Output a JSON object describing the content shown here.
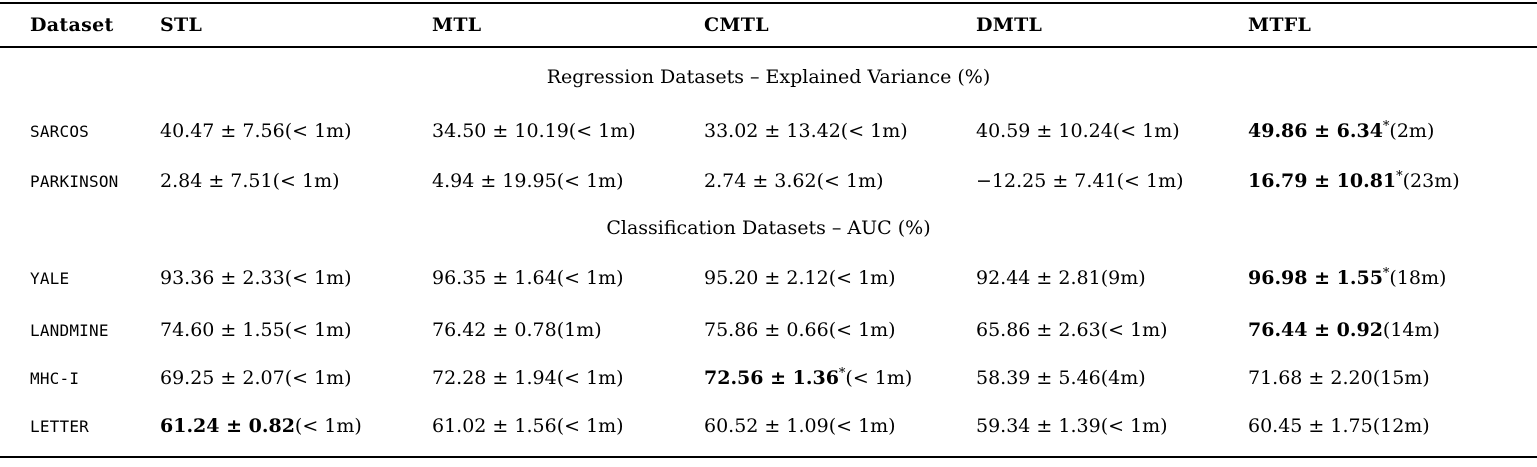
{
  "header": {
    "columns": [
      "Dataset",
      "STL",
      "MTL",
      "CMTL",
      "DMTL",
      "MTFL"
    ]
  },
  "sections": [
    {
      "title": "Regression Datasets – Explained Variance (%)",
      "rows": [
        {
          "dataset": "SARCOS",
          "cells": [
            {
              "value": "40.47 ± 7.56",
              "star": "",
              "time": "(< 1m)",
              "bold": false
            },
            {
              "value": "34.50 ± 10.19",
              "star": "",
              "time": "(< 1m)",
              "bold": false
            },
            {
              "value": "33.02 ± 13.42",
              "star": "",
              "time": "(< 1m)",
              "bold": false
            },
            {
              "value": "40.59 ± 10.24",
              "star": "",
              "time": "(< 1m)",
              "bold": false
            },
            {
              "value": "49.86 ± 6.34",
              "star": "*",
              "time": "(2m)",
              "bold": true
            }
          ]
        },
        {
          "dataset": "PARKINSON",
          "cells": [
            {
              "value": "2.84 ± 7.51",
              "star": "",
              "time": "(< 1m)",
              "bold": false
            },
            {
              "value": "4.94 ± 19.95",
              "star": "",
              "time": "(< 1m)",
              "bold": false
            },
            {
              "value": "2.74 ± 3.62",
              "star": "",
              "time": "(< 1m)",
              "bold": false
            },
            {
              "value": "−12.25 ± 7.41",
              "star": "",
              "time": "(< 1m)",
              "bold": false
            },
            {
              "value": "16.79 ± 10.81",
              "star": "*",
              "time": "(23m)",
              "bold": true
            }
          ]
        }
      ]
    },
    {
      "title": "Classification Datasets – AUC (%)",
      "rows": [
        {
          "dataset": "YALE",
          "cells": [
            {
              "value": "93.36 ± 2.33",
              "star": "",
              "time": "(< 1m)",
              "bold": false
            },
            {
              "value": "96.35 ± 1.64",
              "star": "",
              "time": "(< 1m)",
              "bold": false
            },
            {
              "value": "95.20 ± 2.12",
              "star": "",
              "time": "(< 1m)",
              "bold": false
            },
            {
              "value": "92.44 ± 2.81",
              "star": "",
              "time": "(9m)",
              "bold": false
            },
            {
              "value": "96.98 ± 1.55",
              "star": "*",
              "time": "(18m)",
              "bold": true
            }
          ]
        },
        {
          "dataset": "LANDMINE",
          "cells": [
            {
              "value": "74.60 ± 1.55",
              "star": "",
              "time": "(< 1m)",
              "bold": false
            },
            {
              "value": "76.42 ± 0.78",
              "star": "",
              "time": "(1m)",
              "bold": false
            },
            {
              "value": "75.86 ± 0.66",
              "star": "",
              "time": "(< 1m)",
              "bold": false
            },
            {
              "value": "65.86 ± 2.63",
              "star": "",
              "time": "(< 1m)",
              "bold": false
            },
            {
              "value": "76.44 ± 0.92",
              "star": "",
              "time": "(14m)",
              "bold": true
            }
          ]
        },
        {
          "dataset": "MHC-I",
          "cells": [
            {
              "value": "69.25 ± 2.07",
              "star": "",
              "time": "(< 1m)",
              "bold": false
            },
            {
              "value": "72.28 ± 1.94",
              "star": "",
              "time": "(< 1m)",
              "bold": false
            },
            {
              "value": "72.56 ± 1.36",
              "star": "*",
              "time": "(< 1m)",
              "bold": true
            },
            {
              "value": "58.39 ± 5.46",
              "star": "",
              "time": "(4m)",
              "bold": false
            },
            {
              "value": "71.68 ± 2.20",
              "star": "",
              "time": "(15m)",
              "bold": false
            }
          ]
        },
        {
          "dataset": "LETTER",
          "cells": [
            {
              "value": "61.24 ± 0.82",
              "star": "",
              "time": "(< 1m)",
              "bold": true
            },
            {
              "value": "61.02 ± 1.56",
              "star": "",
              "time": "(< 1m)",
              "bold": false
            },
            {
              "value": "60.52 ± 1.09",
              "star": "",
              "time": "(< 1m)",
              "bold": false
            },
            {
              "value": "59.34 ± 1.39",
              "star": "",
              "time": "(< 1m)",
              "bold": false
            },
            {
              "value": "60.45 ± 1.75",
              "star": "",
              "time": "(12m)",
              "bold": false
            }
          ]
        }
      ]
    }
  ]
}
